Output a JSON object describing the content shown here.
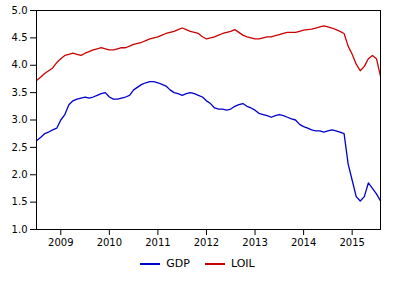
{
  "chart_data": {
    "type": "line",
    "x": [
      2008.5,
      2008.5833333333333,
      2008.6666666666667,
      2008.75,
      2008.8333333333333,
      2008.9166666666667,
      2009,
      2009.0833333333333,
      2009.1666666666667,
      2009.25,
      2009.3333333333333,
      2009.4166666666667,
      2009.5,
      2009.5833333333333,
      2009.6666666666667,
      2009.75,
      2009.8333333333333,
      2009.9166666666667,
      2010,
      2010.0833333333333,
      2010.1666666666667,
      2010.25,
      2010.3333333333333,
      2010.4166666666667,
      2010.5,
      2010.5833333333333,
      2010.6666666666667,
      2010.75,
      2010.8333333333333,
      2010.9166666666667,
      2011,
      2011.0833333333333,
      2011.1666666666667,
      2011.25,
      2011.3333333333333,
      2011.4166666666667,
      2011.5,
      2011.5833333333333,
      2011.6666666666667,
      2011.75,
      2011.8333333333333,
      2011.9166666666667,
      2012,
      2012.0833333333333,
      2012.1666666666667,
      2012.25,
      2012.3333333333333,
      2012.4166666666667,
      2012.5,
      2012.5833333333333,
      2012.6666666666667,
      2012.75,
      2012.8333333333333,
      2012.9166666666667,
      2013,
      2013.0833333333333,
      2013.1666666666667,
      2013.25,
      2013.3333333333333,
      2013.4166666666667,
      2013.5,
      2013.5833333333333,
      2013.6666666666667,
      2013.75,
      2013.8333333333333,
      2013.9166666666667,
      2014,
      2014.0833333333333,
      2014.1666666666667,
      2014.25,
      2014.3333333333333,
      2014.4166666666667,
      2014.5,
      2014.5833333333333,
      2014.6666666666667,
      2014.75,
      2014.8333333333333,
      2014.9166666666667,
      2015,
      2015.0833333333333,
      2015.1666666666667,
      2015.25,
      2015.3333333333333,
      2015.4166666666667,
      2015.5,
      2015.5833333333333
    ],
    "series": [
      {
        "name": "GDP",
        "color": "#0000cc",
        "values": [
          2.62,
          2.68,
          2.75,
          2.78,
          2.82,
          2.85,
          3.0,
          3.1,
          3.28,
          3.35,
          3.38,
          3.4,
          3.42,
          3.4,
          3.42,
          3.45,
          3.48,
          3.5,
          3.42,
          3.38,
          3.38,
          3.4,
          3.42,
          3.45,
          3.55,
          3.6,
          3.65,
          3.68,
          3.7,
          3.7,
          3.68,
          3.65,
          3.62,
          3.55,
          3.5,
          3.48,
          3.45,
          3.48,
          3.5,
          3.48,
          3.45,
          3.42,
          3.35,
          3.3,
          3.22,
          3.2,
          3.2,
          3.18,
          3.2,
          3.25,
          3.28,
          3.3,
          3.25,
          3.22,
          3.18,
          3.12,
          3.1,
          3.08,
          3.05,
          3.08,
          3.1,
          3.08,
          3.05,
          3.02,
          3.0,
          2.92,
          2.88,
          2.85,
          2.82,
          2.8,
          2.8,
          2.78,
          2.8,
          2.82,
          2.8,
          2.78,
          2.75,
          2.2,
          1.9,
          1.6,
          1.52,
          1.6,
          1.85,
          1.75,
          1.65,
          1.52
        ]
      },
      {
        "name": "LOIL",
        "color": "#cc0000",
        "values": [
          3.72,
          3.78,
          3.85,
          3.9,
          3.95,
          4.05,
          4.12,
          4.18,
          4.2,
          4.22,
          4.2,
          4.18,
          4.22,
          4.25,
          4.28,
          4.3,
          4.32,
          4.3,
          4.28,
          4.28,
          4.3,
          4.32,
          4.32,
          4.35,
          4.38,
          4.4,
          4.42,
          4.45,
          4.48,
          4.5,
          4.52,
          4.55,
          4.58,
          4.6,
          4.62,
          4.65,
          4.68,
          4.65,
          4.62,
          4.6,
          4.58,
          4.52,
          4.48,
          4.5,
          4.52,
          4.55,
          4.58,
          4.6,
          4.62,
          4.65,
          4.6,
          4.55,
          4.52,
          4.5,
          4.48,
          4.48,
          4.5,
          4.52,
          4.52,
          4.54,
          4.56,
          4.58,
          4.6,
          4.6,
          4.6,
          4.62,
          4.64,
          4.65,
          4.66,
          4.68,
          4.7,
          4.72,
          4.7,
          4.68,
          4.65,
          4.62,
          4.58,
          4.35,
          4.2,
          4.02,
          3.9,
          3.98,
          4.12,
          4.18,
          4.12,
          3.8
        ]
      }
    ],
    "xlim": [
      2008.5,
      2015.5833333333333
    ],
    "xticks": [
      2009,
      2010,
      2011,
      2012,
      2013,
      2014,
      2015
    ],
    "ylim": [
      1.0,
      5.0
    ],
    "yticks": [
      {
        "value": 1.0,
        "label": "1.0"
      },
      1.5,
      {
        "value": 2.0,
        "label": "2.0"
      },
      2.5,
      {
        "value": 3.0,
        "label": "3.0"
      },
      3.5,
      {
        "value": 4.0,
        "label": "4.0"
      },
      4.5,
      {
        "value": 5.0,
        "label": "5.0"
      }
    ],
    "grid": false,
    "legend": "bottom"
  }
}
